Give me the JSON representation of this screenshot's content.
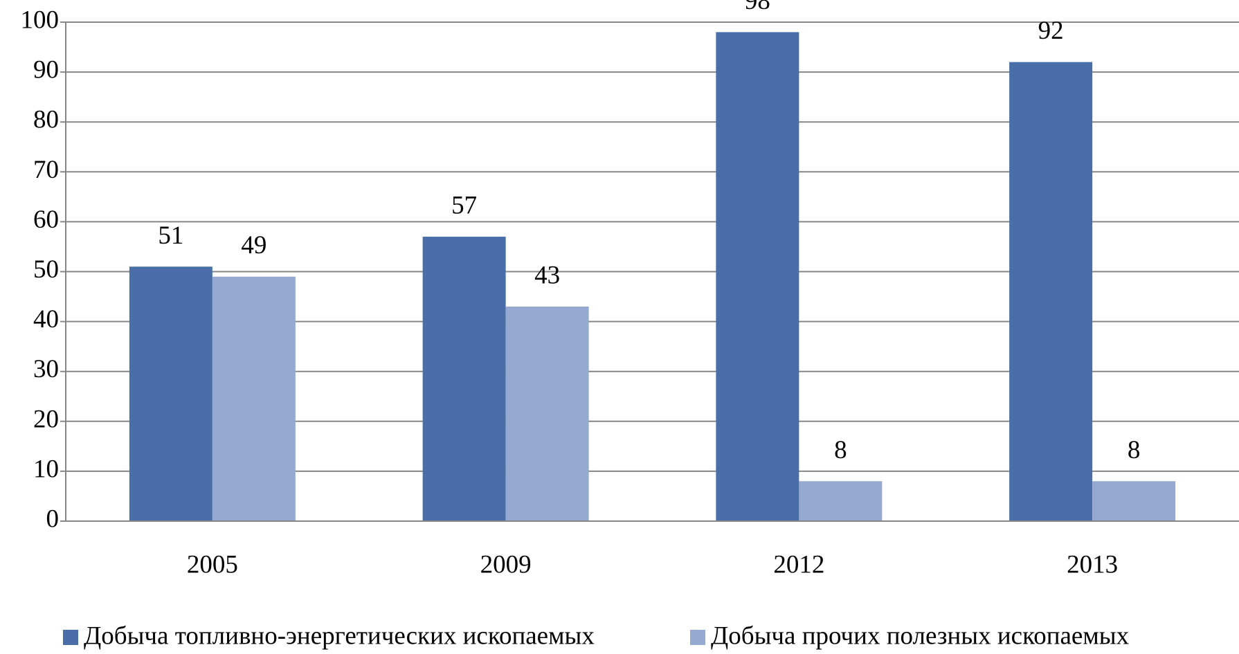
{
  "chart_data": {
    "type": "bar",
    "categories": [
      "2005",
      "2009",
      "2012",
      "2013"
    ],
    "series": [
      {
        "name": "Добыча топливно-энергетических ископаемых",
        "color": "#4a6ea8",
        "values": [
          51,
          57,
          98,
          92
        ]
      },
      {
        "name": "Добыча прочих полезных ископаемых",
        "color": "#95a9d1",
        "values": [
          49,
          43,
          8,
          8
        ]
      }
    ],
    "ylim": [
      0,
      100
    ],
    "yticks": [
      0,
      10,
      20,
      30,
      40,
      50,
      60,
      70,
      80,
      90,
      100
    ],
    "grid": true,
    "legend": "bottom"
  }
}
